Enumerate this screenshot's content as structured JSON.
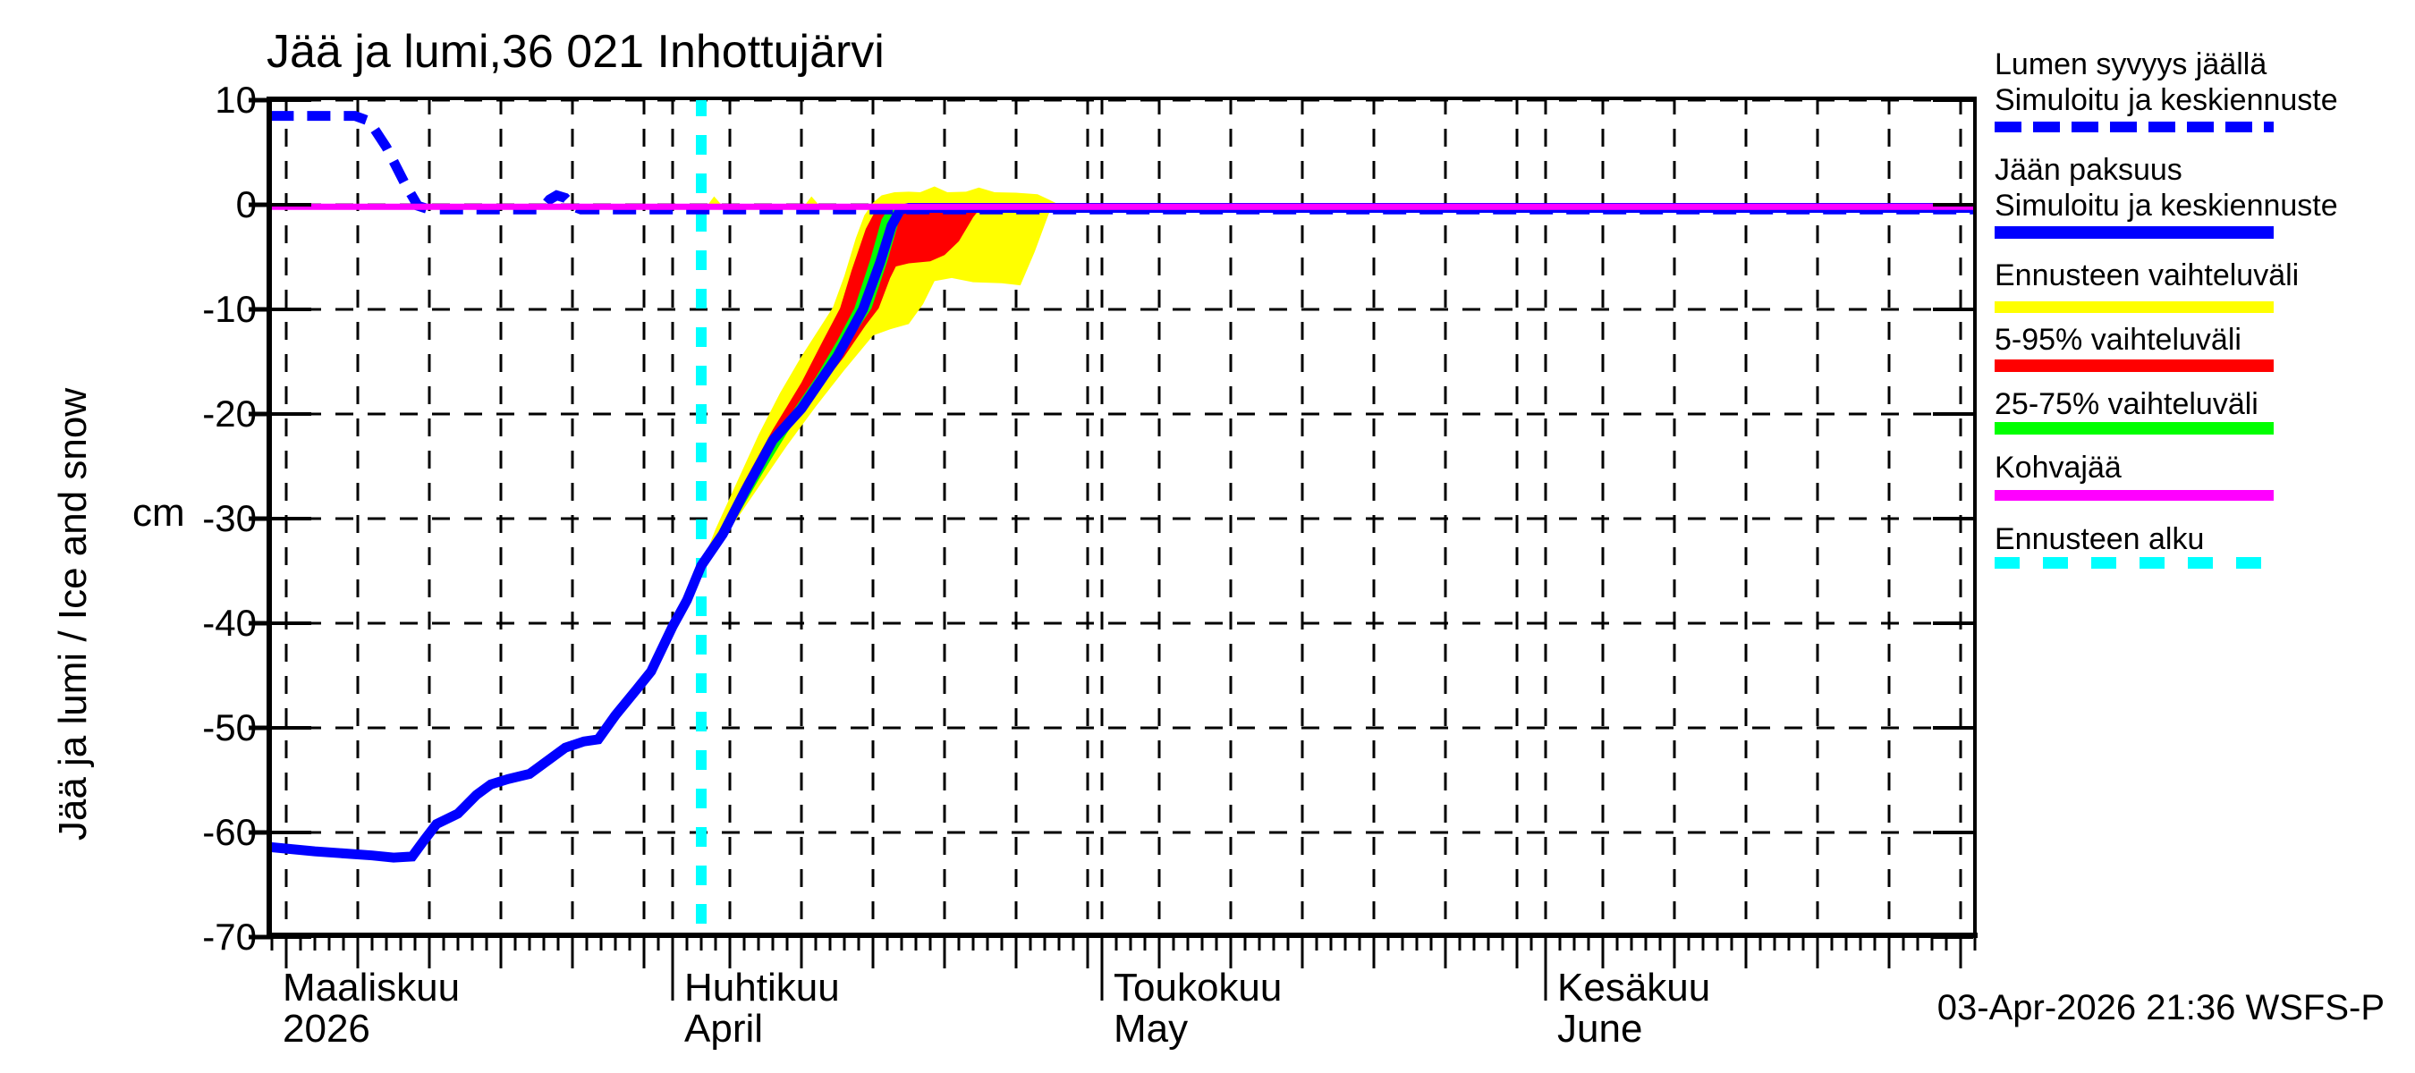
{
  "title": "Jää ja lumi,36 021 Inhottujärvi",
  "timestamp": "03-Apr-2026 21:36 WSFS-P",
  "y_axis": {
    "rotated_label": "Jää ja lumi / Ice and snow",
    "unit": "cm"
  },
  "legend": {
    "entries": [
      {
        "line1": "Lumen syvyys jäällä",
        "line2": "Simuloitu ja keskiennuste",
        "color": "#0000ff",
        "dashed": true,
        "dash_on": 30,
        "dash_off": 13
      },
      {
        "line1": "Jään paksuus",
        "line2": "Simuloitu ja keskiennuste",
        "color": "#0000ff",
        "dashed": false
      },
      {
        "line1": "Ennusteen vaihteluväli",
        "color": "#ffff00",
        "dashed": false
      },
      {
        "line1": "5-95% vaihteluväli",
        "color": "#ff0000",
        "dashed": false
      },
      {
        "line1": "25-75% vaihteluväli",
        "color": "#00ff00",
        "dashed": false
      },
      {
        "line1": "Kohvajää",
        "color": "#ff00ff",
        "dashed": false
      },
      {
        "line1": "Ennusteen alku",
        "color": "#00ffff",
        "dashed": true,
        "dash_on": 28,
        "dash_off": 26
      }
    ]
  },
  "chart_data": {
    "type": "line",
    "title": "Jää ja lumi,36 021 Inhottujärvi",
    "xlabel": "",
    "ylabel": "Jää ja lumi / Ice and snow (cm)",
    "x_unit": "days since 2026-03-01",
    "xlim_days": [
      2.9,
      122
    ],
    "ylim": [
      -70,
      10.4
    ],
    "grid": true,
    "legend_position": "right-outside",
    "forecast_start_day": 33,
    "x_months": [
      {
        "label": "Maaliskuu",
        "sublabel": "2026",
        "start_day": 0,
        "days": 31
      },
      {
        "label": "Huhtikuu",
        "sublabel": "April",
        "start_day": 31,
        "days": 30
      },
      {
        "label": "Toukokuu",
        "sublabel": "May",
        "start_day": 61,
        "days": 31
      },
      {
        "label": "Kesäkuu",
        "sublabel": "June",
        "start_day": 92,
        "days": 30
      }
    ],
    "y_ticks": [
      {
        "v": 10,
        "label": "10"
      },
      {
        "v": 0,
        "label": "0"
      },
      {
        "v": -10,
        "label": "-10"
      },
      {
        "v": -20,
        "label": "-20"
      },
      {
        "v": -30,
        "label": "-30"
      },
      {
        "v": -40,
        "label": "-40"
      },
      {
        "v": -50,
        "label": "-50"
      },
      {
        "v": -60,
        "label": "-60"
      },
      {
        "v": -70,
        "label": "-70"
      }
    ],
    "bands": [
      {
        "name": "Ennusteen vaihteluväli",
        "color": "#ffff00",
        "points": [
          [
            33,
            -34.5
          ],
          [
            34,
            -31
          ],
          [
            35.5,
            -26.5
          ],
          [
            37,
            -22
          ],
          [
            38.5,
            -18
          ],
          [
            40,
            -14.5
          ],
          [
            41.5,
            -11.3
          ],
          [
            42.2,
            -9.8
          ],
          [
            43,
            -6.8
          ],
          [
            43.8,
            -3.2
          ],
          [
            44.4,
            -1
          ],
          [
            45,
            0.2
          ],
          [
            45.6,
            0.9
          ],
          [
            46.5,
            1.2
          ],
          [
            47.5,
            1.25
          ],
          [
            48.3,
            1.2
          ],
          [
            49.3,
            1.75
          ],
          [
            50.2,
            1.2
          ],
          [
            51.5,
            1.25
          ],
          [
            52.4,
            1.65
          ],
          [
            53.5,
            1.2
          ],
          [
            55,
            1.15
          ],
          [
            56.5,
            1.0
          ],
          [
            57.3,
            0.5
          ],
          [
            58.1,
            -0.05
          ],
          [
            57.3,
            -0.8
          ],
          [
            56.3,
            -4.5
          ],
          [
            55.3,
            -7.7
          ],
          [
            54,
            -7.5
          ],
          [
            52,
            -7.4
          ],
          [
            50.5,
            -7
          ],
          [
            49.3,
            -7.3
          ],
          [
            48.5,
            -9.5
          ],
          [
            47.5,
            -11.4
          ],
          [
            46.2,
            -11.9
          ],
          [
            45,
            -12.5
          ],
          [
            43,
            -15.8
          ],
          [
            41,
            -19.3
          ],
          [
            39,
            -23
          ],
          [
            37,
            -27
          ],
          [
            35,
            -31
          ],
          [
            33.8,
            -33
          ]
        ]
      },
      {
        "name": "Ennusteen vaihteluväli (lumi)",
        "color": "#ffff00",
        "points": [
          [
            33.3,
            -0.3
          ],
          [
            33.9,
            0.8
          ],
          [
            34.6,
            -0.3
          ]
        ]
      },
      {
        "name": "Ennusteen vaihteluväli (lumi 2)",
        "color": "#ffff00",
        "points": [
          [
            40.1,
            -0.3
          ],
          [
            40.7,
            0.8
          ],
          [
            41.4,
            -0.3
          ]
        ]
      },
      {
        "name": "5-95% vaihteluväli",
        "color": "#ff0000",
        "points": [
          [
            33,
            -34.5
          ],
          [
            34.2,
            -31.3
          ],
          [
            36,
            -26.5
          ],
          [
            38,
            -21.5
          ],
          [
            40,
            -17
          ],
          [
            41.5,
            -13
          ],
          [
            42.7,
            -9.9
          ],
          [
            43.5,
            -6.3
          ],
          [
            44.5,
            -2.3
          ],
          [
            45.2,
            -0.5
          ],
          [
            45.8,
            -0.15
          ],
          [
            52.6,
            -0.15
          ],
          [
            52,
            -1.2
          ],
          [
            51,
            -3.5
          ],
          [
            50,
            -4.8
          ],
          [
            49,
            -5.4
          ],
          [
            47.5,
            -5.6
          ],
          [
            46.6,
            -5.9
          ],
          [
            46.2,
            -7
          ],
          [
            45.4,
            -9.9
          ],
          [
            44.5,
            -11.5
          ],
          [
            43,
            -14.5
          ],
          [
            41,
            -18
          ],
          [
            39,
            -21.5
          ],
          [
            37,
            -26
          ],
          [
            35,
            -30.5
          ],
          [
            33.9,
            -32.8
          ]
        ]
      },
      {
        "name": "25-75% vaihteluväli",
        "color": "#00ff00",
        "points": [
          [
            33,
            -34.5
          ],
          [
            35,
            -30
          ],
          [
            37,
            -25
          ],
          [
            39,
            -20.5
          ],
          [
            41,
            -16.5
          ],
          [
            42.5,
            -13
          ],
          [
            43.7,
            -9.9
          ],
          [
            44.8,
            -5.3
          ],
          [
            45.6,
            -1.4
          ],
          [
            46.1,
            -0.3
          ],
          [
            47.3,
            -0.3
          ],
          [
            46.8,
            -1.6
          ],
          [
            46,
            -5.4
          ],
          [
            44.9,
            -9.9
          ],
          [
            43,
            -13.8
          ],
          [
            41,
            -17.8
          ],
          [
            39,
            -21.8
          ],
          [
            37,
            -26.3
          ],
          [
            35,
            -31
          ],
          [
            34,
            -32.9
          ]
        ]
      }
    ],
    "series": [
      {
        "name": "Jään paksuus — Simuloitu ja keskiennuste",
        "color": "#0000ff",
        "width": 11,
        "dashed": false,
        "points": [
          [
            2.9,
            -61.4
          ],
          [
            6,
            -61.8
          ],
          [
            10,
            -62.2
          ],
          [
            11.5,
            -62.4
          ],
          [
            12.8,
            -62.3
          ],
          [
            13.6,
            -60.8
          ],
          [
            14.5,
            -59.2
          ],
          [
            16,
            -58.2
          ],
          [
            17.3,
            -56.4
          ],
          [
            18.3,
            -55.4
          ],
          [
            19.5,
            -54.9
          ],
          [
            21,
            -54.4
          ],
          [
            23.5,
            -51.9
          ],
          [
            24.8,
            -51.3
          ],
          [
            25.8,
            -51.1
          ],
          [
            27,
            -48.8
          ],
          [
            28.5,
            -46.3
          ],
          [
            29.5,
            -44.6
          ],
          [
            31,
            -40.3
          ],
          [
            32,
            -37.8
          ],
          [
            33,
            -34.5
          ],
          [
            34.5,
            -31.5
          ],
          [
            36,
            -27.5
          ],
          [
            38,
            -22.5
          ],
          [
            40,
            -19.5
          ],
          [
            42.5,
            -14.5
          ],
          [
            44.3,
            -10
          ],
          [
            45.5,
            -5.5
          ],
          [
            46.3,
            -2
          ],
          [
            46.9,
            -0.5
          ],
          [
            47.5,
            -0.3
          ],
          [
            122,
            -0.3
          ]
        ]
      },
      {
        "name": "Lumen syvyys jäällä — Simuloitu ja keskiennuste",
        "color": "#0000ff",
        "width": 11,
        "dashed": true,
        "points": [
          [
            2.9,
            8.5
          ],
          [
            8.8,
            8.5
          ],
          [
            9.8,
            8.0
          ],
          [
            11,
            5.5
          ],
          [
            12.3,
            2
          ],
          [
            13.2,
            -0.1
          ],
          [
            14,
            -0.45
          ],
          [
            21.8,
            -0.45
          ],
          [
            22.4,
            0.5
          ],
          [
            22.9,
            0.9
          ],
          [
            23.5,
            0.65
          ],
          [
            24.1,
            -0.2
          ],
          [
            24.6,
            -0.45
          ],
          [
            122,
            -0.45
          ]
        ]
      },
      {
        "name": "Kohvajää",
        "color": "#ff00ff",
        "width": 7,
        "dashed": false,
        "points": [
          [
            2.9,
            -0.2
          ],
          [
            122,
            -0.2
          ]
        ]
      }
    ]
  }
}
